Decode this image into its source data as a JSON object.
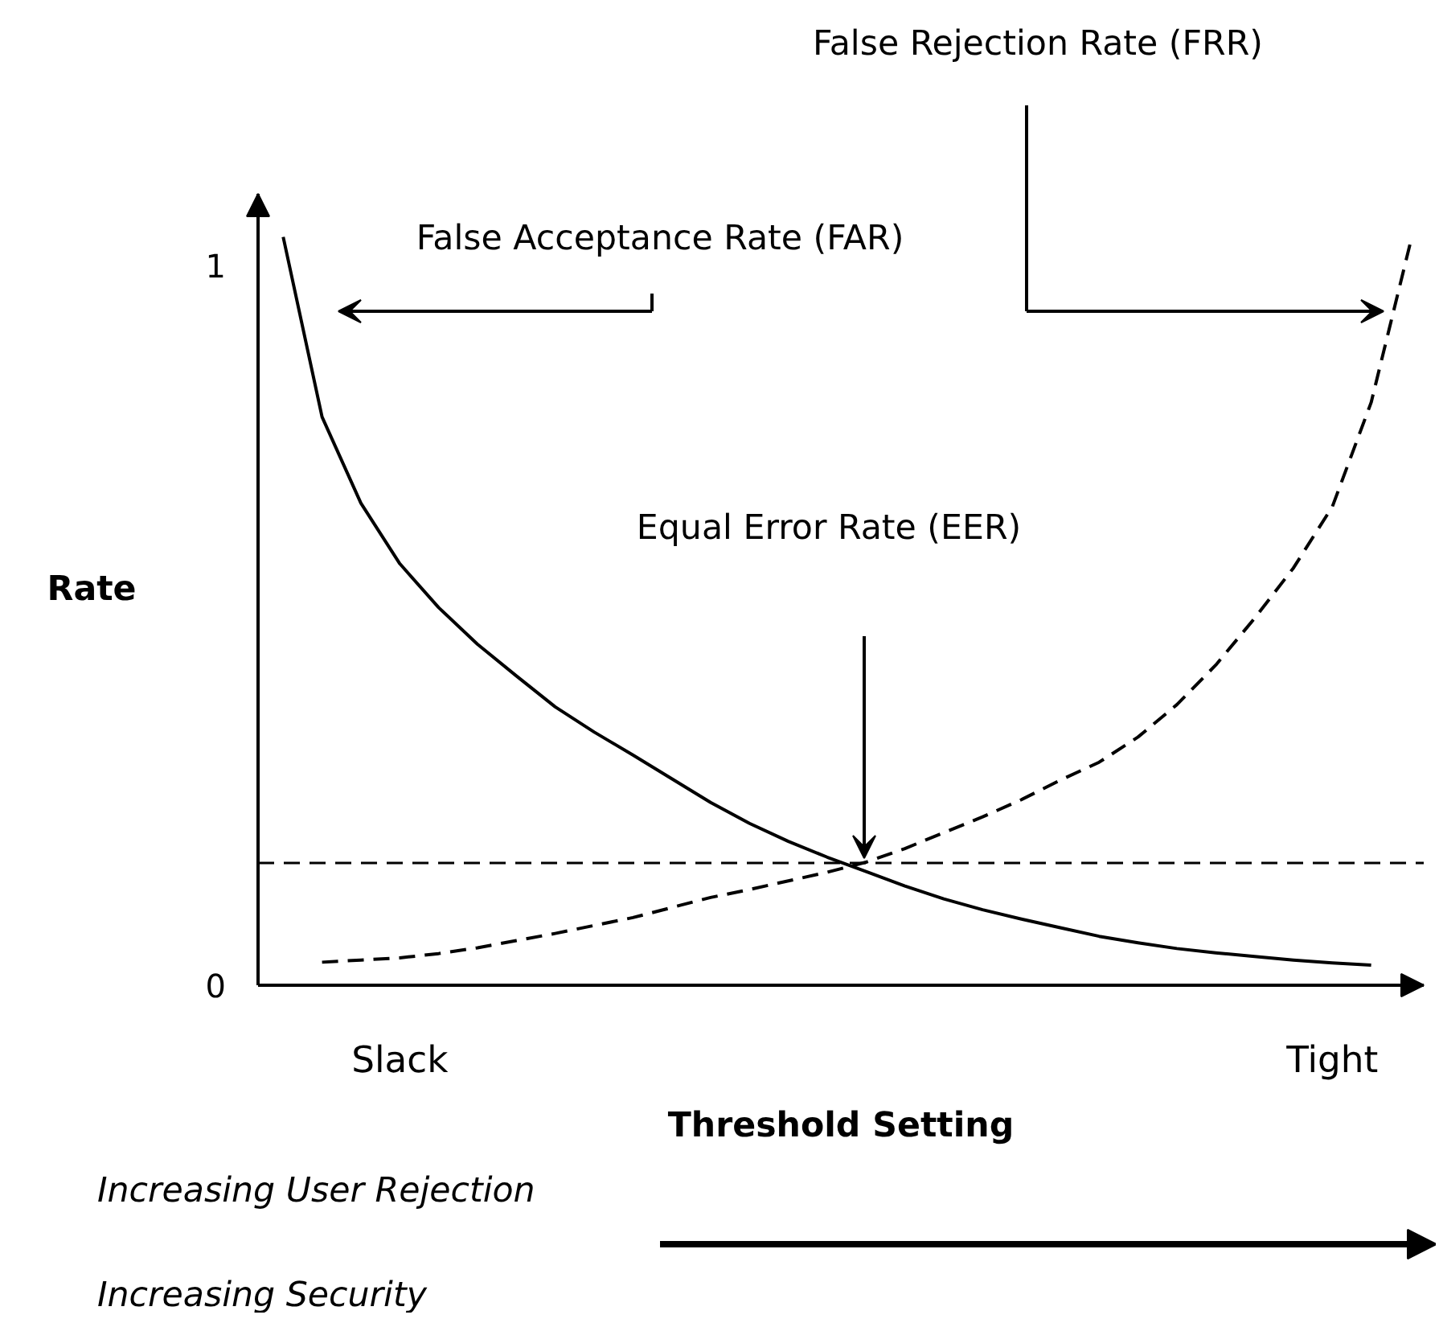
{
  "chart_data": {
    "type": "line",
    "xlabel": "Threshold Setting",
    "ylabel": "Rate",
    "categories": [
      null,
      null,
      null,
      "Slack",
      null,
      null,
      null,
      null,
      null,
      null,
      null,
      null,
      null,
      null,
      null,
      null,
      null,
      null,
      null,
      null,
      null,
      null,
      null,
      null,
      null,
      null,
      null,
      "Tight",
      null,
      null
    ],
    "ylim": [
      0,
      1.1
    ],
    "yticks": [
      0,
      1
    ],
    "grid": false,
    "marker": "none",
    "series": [
      {
        "color": "#000000",
        "line_style": "solid",
        "values": [
          1.04,
          0.79,
          0.67,
          0.586,
          0.525,
          0.474,
          0.43,
          0.387,
          0.352,
          0.32,
          0.287,
          0.254,
          0.225,
          0.2,
          0.178,
          0.158,
          0.138,
          0.12,
          0.105,
          0.092,
          0.08,
          0.068,
          0.059,
          0.051,
          0.045,
          0.04,
          0.035,
          0.031,
          0.028,
          null
        ]
      },
      {
        "color": "#000000",
        "line_style": "dashed",
        "values": [
          null,
          0.032,
          0.035,
          0.038,
          0.044,
          0.052,
          0.062,
          0.072,
          0.083,
          0.094,
          0.108,
          0.122,
          0.133,
          0.145,
          0.157,
          0.171,
          0.19,
          0.212,
          0.234,
          0.258,
          0.285,
          0.31,
          0.345,
          0.39,
          0.445,
          0.51,
          0.58,
          0.665,
          0.81,
          1.03
        ]
      }
    ],
    "ref_lines": [
      {
        "axis": "y",
        "value": 0.17,
        "line_style": "dashed",
        "color": "#000000"
      }
    ],
    "annotations": [
      "False Rejection Rate (FRR)",
      "False Acceptance Rate (FAR)",
      "Equal Error Rate (EER)",
      "Increasing User Rejection",
      "Increasing Security"
    ]
  }
}
